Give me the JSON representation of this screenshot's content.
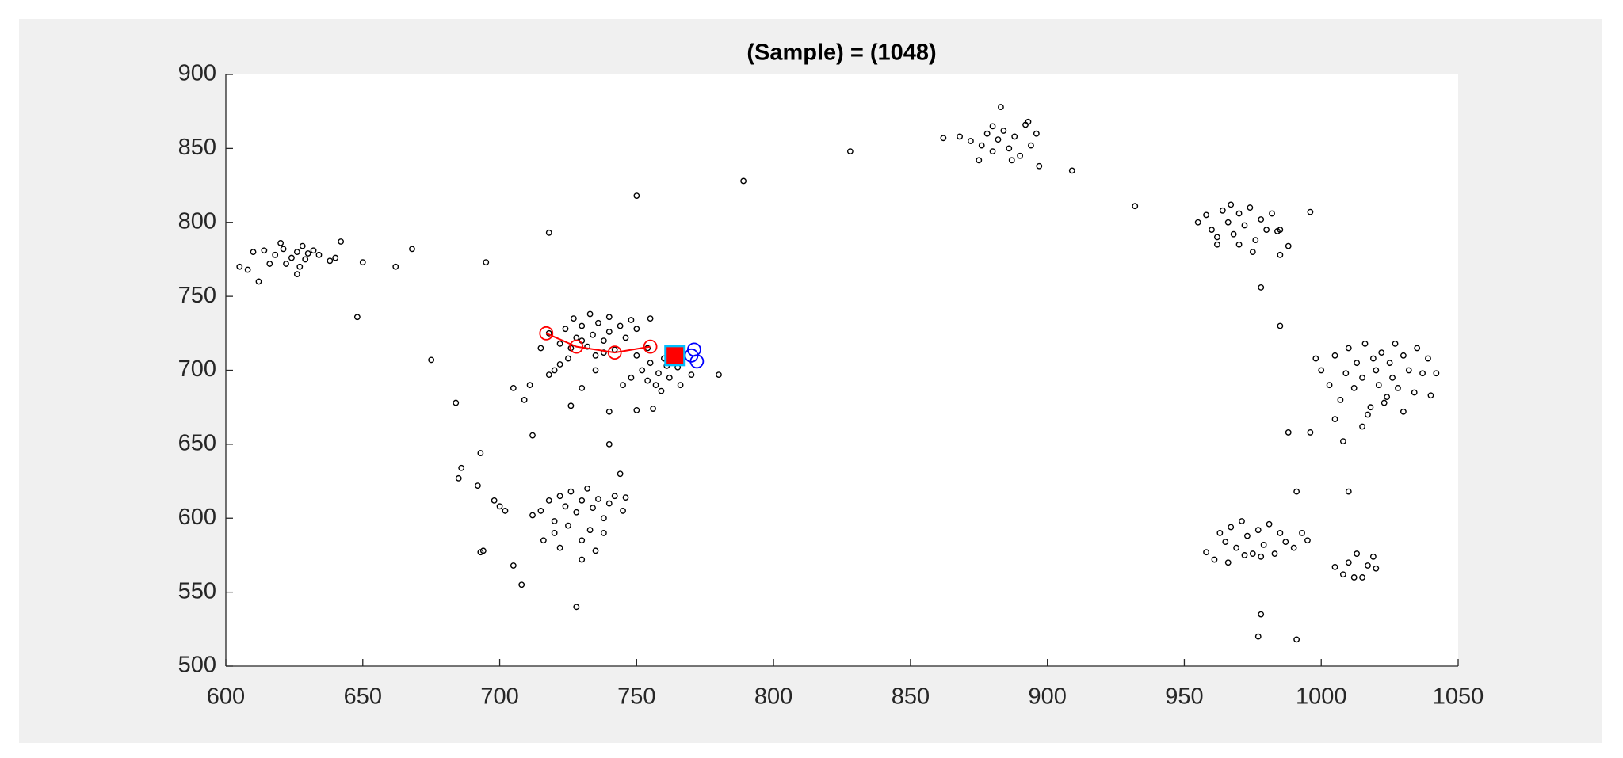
{
  "chart_data": {
    "type": "scatter",
    "title": "(Sample) = (1048)",
    "xlim": [
      600,
      1050
    ],
    "ylim": [
      500,
      900
    ],
    "xticks": [
      600,
      650,
      700,
      750,
      800,
      850,
      900,
      950,
      1000,
      1050
    ],
    "yticks": [
      500,
      550,
      600,
      650,
      700,
      750,
      800,
      850,
      900
    ],
    "grid": false,
    "series": [
      {
        "color": "#000000",
        "marker": "circle",
        "line": false,
        "x": [
          618,
          621,
          624,
          626,
          628,
          630,
          622,
          627,
          632,
          620,
          629,
          634,
          626,
          616,
          612,
          605,
          608,
          610,
          614,
          638,
          640,
          642,
          650,
          648,
          662,
          668,
          675,
          684,
          686,
          685,
          692,
          693,
          693,
          694,
          695,
          698,
          700,
          702,
          705,
          708,
          705,
          709,
          711,
          712,
          718,
          750,
          789,
          828,
          780,
          718,
          722,
          724,
          726,
          728,
          730,
          732,
          734,
          736,
          738,
          740,
          742,
          744,
          746,
          748,
          735,
          730,
          725,
          720,
          715,
          733,
          740,
          750,
          727,
          738,
          718,
          722,
          726,
          735,
          740,
          745,
          750,
          754,
          756,
          730,
          755,
          752,
          755,
          758,
          760,
          762,
          765,
          757,
          750,
          748,
          763,
          759,
          770,
          766,
          754,
          761,
          715,
          718,
          720,
          722,
          724,
          726,
          728,
          730,
          732,
          734,
          736,
          738,
          740,
          742,
          720,
          725,
          730,
          733,
          738,
          745,
          712,
          716,
          722,
          735,
          746,
          728,
          744,
          740,
          730,
          868,
          872,
          876,
          878,
          880,
          882,
          884,
          886,
          888,
          890,
          892,
          894,
          896,
          880,
          883,
          875,
          887,
          893,
          862,
          897,
          909,
          932,
          985,
          978,
          988,
          996,
          991,
          1010,
          977,
          991,
          978,
          996,
          988,
          985,
          955,
          958,
          960,
          962,
          964,
          966,
          968,
          970,
          972,
          974,
          976,
          978,
          980,
          982,
          984,
          962,
          970,
          975,
          985,
          967,
          1000,
          1003,
          1005,
          1007,
          1009,
          1010,
          1012,
          1013,
          1015,
          1016,
          1018,
          1019,
          1020,
          1021,
          1022,
          1024,
          1025,
          1026,
          1027,
          1028,
          1030,
          1032,
          1034,
          1035,
          1037,
          1039,
          1040,
          1042,
          1008,
          1005,
          1015,
          1017,
          1030,
          1023,
          998,
          958,
          961,
          963,
          965,
          967,
          969,
          971,
          973,
          975,
          977,
          979,
          981,
          983,
          985,
          987,
          990,
          993,
          966,
          972,
          978,
          995,
          1005,
          1008,
          1010,
          1012,
          1013,
          1015,
          1017,
          1019,
          1020
        ],
        "y": [
          778,
          782,
          776,
          780,
          784,
          779,
          772,
          770,
          781,
          786,
          775,
          778,
          765,
          772,
          760,
          770,
          768,
          780,
          781,
          774,
          776,
          787,
          773,
          736,
          770,
          782,
          707,
          678,
          634,
          627,
          622,
          644,
          577,
          578,
          773,
          612,
          608,
          605,
          568,
          555,
          688,
          680,
          690,
          656,
          793,
          818,
          828,
          848,
          697,
          725,
          718,
          728,
          715,
          722,
          730,
          716,
          724,
          732,
          720,
          726,
          714,
          730,
          722,
          734,
          710,
          720,
          708,
          700,
          715,
          738,
          736,
          728,
          735,
          712,
          697,
          704,
          676,
          700,
          672,
          690,
          673,
          693,
          674,
          688,
          735,
          700,
          705,
          698,
          708,
          695,
          702,
          690,
          710,
          695,
          712,
          686,
          697,
          690,
          715,
          703,
          605,
          612,
          598,
          615,
          608,
          618,
          604,
          612,
          620,
          607,
          613,
          600,
          610,
          615,
          590,
          595,
          585,
          592,
          590,
          605,
          602,
          585,
          580,
          578,
          614,
          540,
          630,
          650,
          572,
          858,
          855,
          852,
          860,
          848,
          856,
          862,
          850,
          858,
          845,
          866,
          852,
          860,
          865,
          878,
          842,
          842,
          868,
          857,
          838,
          835,
          811,
          730,
          756,
          658,
          658,
          618,
          618,
          520,
          518,
          535,
          807,
          784,
          778,
          800,
          805,
          795,
          790,
          808,
          800,
          792,
          806,
          798,
          810,
          788,
          802,
          795,
          806,
          794,
          785,
          785,
          780,
          795,
          812,
          700,
          690,
          710,
          680,
          698,
          715,
          688,
          705,
          695,
          718,
          675,
          708,
          700,
          690,
          712,
          682,
          705,
          695,
          718,
          688,
          710,
          700,
          685,
          715,
          698,
          708,
          683,
          698,
          652,
          667,
          662,
          670,
          672,
          678,
          708,
          577,
          572,
          590,
          584,
          594,
          580,
          598,
          588,
          576,
          592,
          582,
          596,
          576,
          590,
          584,
          580,
          590,
          570,
          575,
          574,
          585,
          567,
          562,
          570,
          560,
          576,
          560,
          568,
          574,
          566
        ]
      },
      {
        "color": "#ff0000",
        "marker": "circle",
        "line": true,
        "x": [
          717,
          728,
          742,
          755
        ],
        "y": [
          725,
          716,
          712,
          716
        ]
      },
      {
        "color": "#0000ff",
        "marker": "circle",
        "line": false,
        "x": [
          771,
          772,
          770
        ],
        "y": [
          714,
          706,
          710
        ]
      },
      {
        "color": "#ff0000",
        "edge": "#00bfff",
        "marker": "square",
        "line": false,
        "x": [
          764
        ],
        "y": [
          710
        ]
      }
    ]
  }
}
